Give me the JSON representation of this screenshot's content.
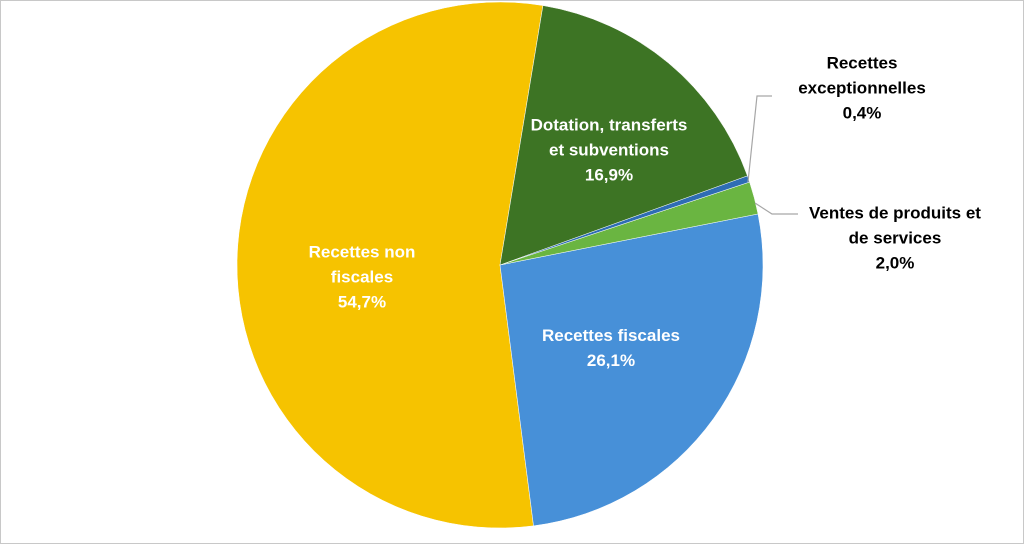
{
  "chart_data": {
    "type": "pie",
    "categories": [
      "Dotation, transferts et subventions",
      "Recettes exceptionnelles",
      "Ventes de produits et de services",
      "Recettes fiscales",
      "Recettes non fiscales"
    ],
    "values": [
      16.9,
      0.4,
      2.0,
      26.1,
      54.7
    ],
    "value_labels": [
      "16,9%",
      "0,4%",
      "2,0%",
      "26,1%",
      "54,7%"
    ],
    "colors": [
      "#3d7424",
      "#2e6db4",
      "#6ab541",
      "#4790d8",
      "#f6c300"
    ]
  }
}
